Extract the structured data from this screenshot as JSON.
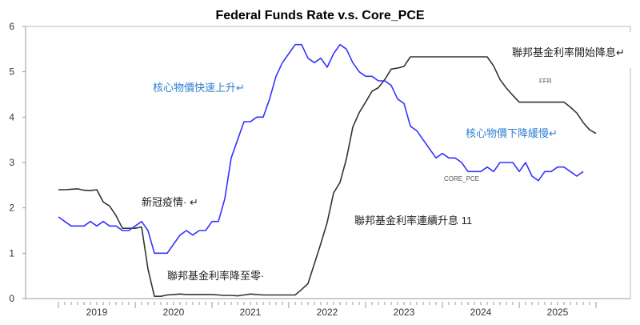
{
  "chart_data": {
    "type": "line",
    "title": "Federal Funds Rate v.s. Core_PCE",
    "xlabel": "",
    "ylabel": "",
    "ylim": [
      0,
      6
    ],
    "yticks": [
      "0",
      "1",
      "2",
      "3",
      "4",
      "5",
      "6"
    ],
    "xticks": [
      "2019",
      "2020",
      "2021",
      "2022",
      "2023",
      "2024",
      "2025"
    ],
    "frequency": "monthly",
    "start": "2019-01",
    "grid": false,
    "series": [
      {
        "name": "FFR",
        "color": "#333333",
        "values": [
          2.4,
          2.4,
          2.41,
          2.42,
          2.39,
          2.38,
          2.4,
          2.13,
          2.04,
          1.83,
          1.55,
          1.55,
          1.55,
          1.58,
          0.65,
          0.05,
          0.05,
          0.08,
          0.09,
          0.1,
          0.09,
          0.09,
          0.09,
          0.09,
          0.09,
          0.08,
          0.07,
          0.07,
          0.06,
          0.08,
          0.1,
          0.09,
          0.08,
          0.08,
          0.08,
          0.08,
          0.08,
          0.08,
          0.2,
          0.33,
          0.77,
          1.21,
          1.68,
          2.33,
          2.56,
          3.08,
          3.78,
          4.1,
          4.33,
          4.57,
          4.65,
          4.83,
          5.06,
          5.08,
          5.12,
          5.33,
          5.33,
          5.33,
          5.33,
          5.33,
          5.33,
          5.33,
          5.33,
          5.33,
          5.33,
          5.33,
          5.33,
          5.33,
          5.13,
          4.83,
          4.64,
          4.48,
          4.33,
          4.33,
          4.33,
          4.33,
          4.33,
          4.33,
          4.33,
          4.33,
          4.22,
          4.09,
          3.88,
          3.72,
          3.64
        ]
      },
      {
        "name": "CORE_PCE",
        "color": "#3333ff",
        "values": [
          1.8,
          1.7,
          1.6,
          1.6,
          1.6,
          1.7,
          1.6,
          1.7,
          1.6,
          1.6,
          1.5,
          1.5,
          1.6,
          1.7,
          1.5,
          1.0,
          1.0,
          1.0,
          1.2,
          1.4,
          1.5,
          1.4,
          1.5,
          1.5,
          1.7,
          1.7,
          2.2,
          3.1,
          3.5,
          3.9,
          3.9,
          4.0,
          4.0,
          4.4,
          4.9,
          5.2,
          5.4,
          5.6,
          5.6,
          5.3,
          5.2,
          5.3,
          5.1,
          5.4,
          5.6,
          5.5,
          5.2,
          5.0,
          4.9,
          4.9,
          4.8,
          4.8,
          4.7,
          4.4,
          4.3,
          3.8,
          3.7,
          3.5,
          3.3,
          3.1,
          3.2,
          3.1,
          3.1,
          3.0,
          2.8,
          2.8,
          2.8,
          2.9,
          2.8,
          3.0,
          3.0,
          3.0,
          2.8,
          3.0,
          2.7,
          2.6,
          2.8,
          2.8,
          2.9,
          2.9,
          2.8,
          2.7,
          2.8
        ]
      }
    ],
    "annotations": {
      "covid": "新冠疫情· ↵",
      "rate_to_zero": "聯邦基金利率降至零·",
      "core_rise": "核心物價快速上升↵",
      "rate_hikes": "聯邦基金利率連續升息 11",
      "rate_cuts": "聯邦基金利率開始降息↵",
      "core_slow_decline": "核心物價下降緩慢↵"
    },
    "colors": {
      "annotation_blue": "#2f7fd0"
    }
  }
}
